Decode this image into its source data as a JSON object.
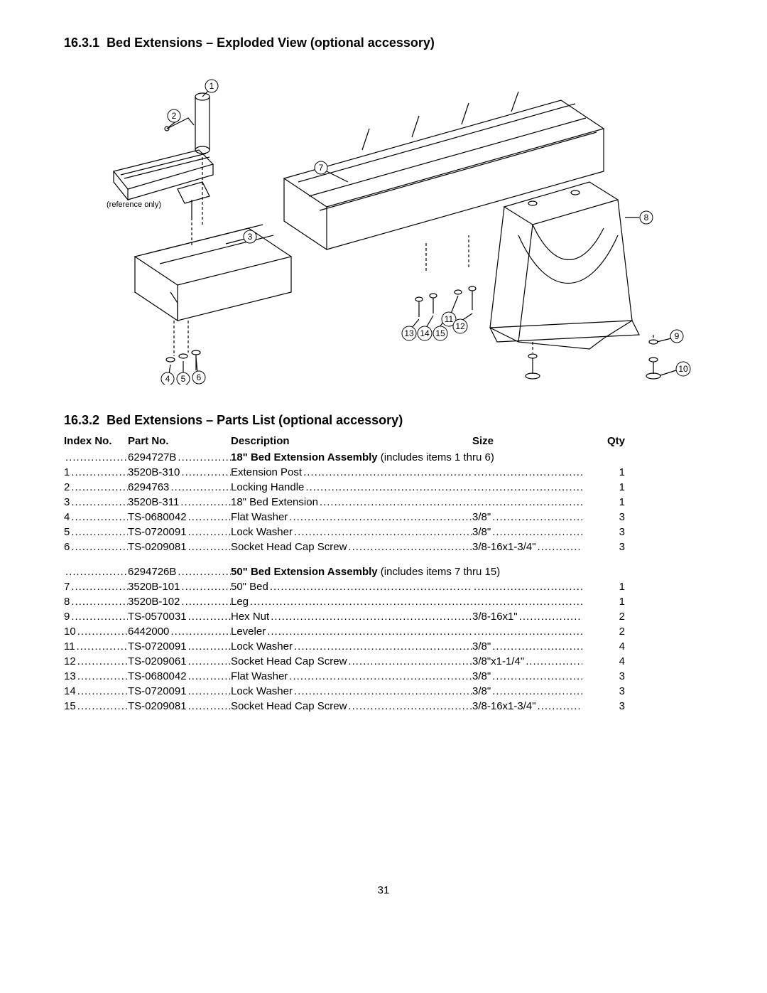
{
  "section1": {
    "number": "16.3.1",
    "title": "Bed Extensions – Exploded View (optional accessory)"
  },
  "section2": {
    "number": "16.3.2",
    "title": "Bed Extensions – Parts List (optional accessory)"
  },
  "diagram": {
    "reference_label": "(reference only)",
    "callouts": [
      "1",
      "2",
      "3",
      "4",
      "5",
      "6",
      "7",
      "8",
      "9",
      "10",
      "11",
      "12",
      "13",
      "14",
      "15"
    ],
    "stroke_color": "#000000",
    "fill_color": "#ffffff"
  },
  "headers": {
    "index": "Index No.",
    "part": "Part No.",
    "desc": "Description",
    "size": "Size",
    "qty": "Qty"
  },
  "assemblies": [
    {
      "part": "6294727B",
      "desc_bold": "18\" Bed Extension Assembly",
      "desc_rest": " (includes items 1 thru 6)",
      "rows": [
        {
          "index": "1",
          "part": "3520B-310",
          "desc": "Extension Post",
          "size": "",
          "qty": "1"
        },
        {
          "index": "2",
          "part": "6294763",
          "desc": "Locking Handle",
          "size": "",
          "qty": "1"
        },
        {
          "index": "3",
          "part": "3520B-311",
          "desc": "18\" Bed Extension",
          "size": "",
          "qty": "1"
        },
        {
          "index": "4",
          "part": "TS-0680042",
          "desc": "Flat Washer",
          "size": "3/8\"",
          "qty": "3"
        },
        {
          "index": "5",
          "part": "TS-0720091",
          "desc": "Lock Washer",
          "size": "3/8\"",
          "qty": "3"
        },
        {
          "index": "6",
          "part": "TS-0209081",
          "desc": "Socket Head Cap Screw",
          "size": "3/8-16x1-3/4\"",
          "qty": "3"
        }
      ]
    },
    {
      "part": "6294726B",
      "desc_bold": "50\" Bed Extension Assembly",
      "desc_rest": " (includes items 7 thru 15)",
      "rows": [
        {
          "index": "7",
          "part": "3520B-101",
          "desc": "50\" Bed",
          "size": "",
          "qty": "1"
        },
        {
          "index": "8",
          "part": "3520B-102",
          "desc": "Leg",
          "size": "",
          "qty": "1"
        },
        {
          "index": "9",
          "part": "TS-0570031",
          "desc": "Hex Nut",
          "size": "3/8-16x1\"",
          "qty": "2"
        },
        {
          "index": "10",
          "part": "6442000",
          "desc": "Leveler",
          "size": "",
          "qty": "2"
        },
        {
          "index": "11",
          "part": "TS-0720091",
          "desc": "Lock Washer",
          "size": "3/8\"",
          "qty": "4"
        },
        {
          "index": "12",
          "part": "TS-0209061",
          "desc": "Socket Head Cap Screw",
          "size": "3/8\"x1-1/4\"",
          "qty": "4"
        },
        {
          "index": "13",
          "part": "TS-0680042",
          "desc": "Flat Washer",
          "size": "3/8\"",
          "qty": "3"
        },
        {
          "index": "14",
          "part": "TS-0720091",
          "desc": "Lock Washer",
          "size": "3/8\"",
          "qty": "3"
        },
        {
          "index": "15",
          "part": "TS-0209081",
          "desc": "Socket Head Cap Screw",
          "size": "3/8-16x1-3/4\"",
          "qty": "3"
        }
      ]
    }
  ],
  "page_number": "31"
}
